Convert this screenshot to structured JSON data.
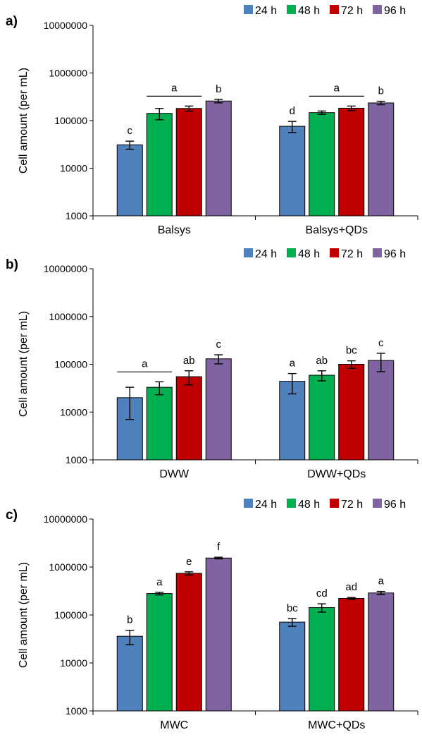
{
  "colors": {
    "24 h": "#4f81bd",
    "48 h": "#00b050",
    "72 h": "#c00000",
    "96 h": "#8064a2"
  },
  "chart_data": [
    {
      "type": "bar",
      "panel_label": "a)",
      "log_y": true,
      "ylim": [
        1000,
        10000000
      ],
      "yticks": [
        "1000",
        "10000",
        "100000",
        "1000000",
        "10000000"
      ],
      "ylabel": "Cell amount (per mL)",
      "legend_position": "top-right",
      "categories": [
        "Balsys",
        "Balsys+QDs"
      ],
      "series": [
        {
          "name": "24 h",
          "values": [
            31000,
            76000
          ],
          "errors": [
            6000,
            20000
          ],
          "letters": [
            "c",
            "d"
          ]
        },
        {
          "name": "48 h",
          "values": [
            142000,
            147000
          ],
          "errors": [
            38000,
            12000
          ],
          "letters": [
            "",
            ""
          ]
        },
        {
          "name": "72 h",
          "values": [
            180000,
            182000
          ],
          "errors": [
            22000,
            20000
          ],
          "letters": [
            "",
            ""
          ]
        },
        {
          "name": "96 h",
          "values": [
            258000,
            235000
          ],
          "errors": [
            22000,
            20000
          ],
          "letters": [
            "b",
            "b"
          ]
        }
      ],
      "group_letters": [
        {
          "category": 0,
          "from_series": 1,
          "to_series": 2,
          "letter": "a"
        },
        {
          "category": 1,
          "from_series": 1,
          "to_series": 2,
          "letter": "a"
        }
      ]
    },
    {
      "type": "bar",
      "panel_label": "b)",
      "log_y": true,
      "ylim": [
        1000,
        10000000
      ],
      "yticks": [
        "1000",
        "10000",
        "100000",
        "1000000",
        "10000000"
      ],
      "ylabel": "Cell amount (per mL)",
      "legend_position": "top-right",
      "categories": [
        "DWW",
        "DWW+QDs"
      ],
      "series": [
        {
          "name": "24 h",
          "values": [
            20000,
            44000
          ],
          "errors": [
            13000,
            20000
          ],
          "letters": [
            "",
            "a"
          ]
        },
        {
          "name": "48 h",
          "values": [
            33000,
            59000
          ],
          "errors": [
            10000,
            14000
          ],
          "letters": [
            "",
            "ab"
          ]
        },
        {
          "name": "72 h",
          "values": [
            55000,
            100000
          ],
          "errors": [
            18000,
            18000
          ],
          "letters": [
            "ab",
            "bc"
          ]
        },
        {
          "name": "96 h",
          "values": [
            130000,
            120000
          ],
          "errors": [
            28000,
            50000
          ],
          "letters": [
            "c",
            "c"
          ]
        }
      ],
      "group_letters": [
        {
          "category": 0,
          "from_series": 0,
          "to_series": 1,
          "letter": "a"
        }
      ]
    },
    {
      "type": "bar",
      "panel_label": "c)",
      "log_y": true,
      "ylim": [
        1000,
        10000000
      ],
      "yticks": [
        "1000",
        "10000",
        "100000",
        "1000000",
        "10000000"
      ],
      "ylabel": "Cell amount (per mL)",
      "legend_position": "top-right",
      "categories": [
        "MWC",
        "MWC+QDs"
      ],
      "series": [
        {
          "name": "24 h",
          "values": [
            36000,
            71000
          ],
          "errors": [
            12000,
            13000
          ],
          "letters": [
            "b",
            "bc"
          ]
        },
        {
          "name": "48 h",
          "values": [
            280000,
            143000
          ],
          "errors": [
            18000,
            28000
          ],
          "letters": [
            "a",
            "cd"
          ]
        },
        {
          "name": "72 h",
          "values": [
            740000,
            222000
          ],
          "errors": [
            55000,
            10000
          ],
          "letters": [
            "e",
            "ad"
          ]
        },
        {
          "name": "96 h",
          "values": [
            1540000,
            288000
          ],
          "errors": [
            60000,
            22000
          ],
          "letters": [
            "f",
            "a"
          ]
        }
      ],
      "group_letters": []
    }
  ]
}
